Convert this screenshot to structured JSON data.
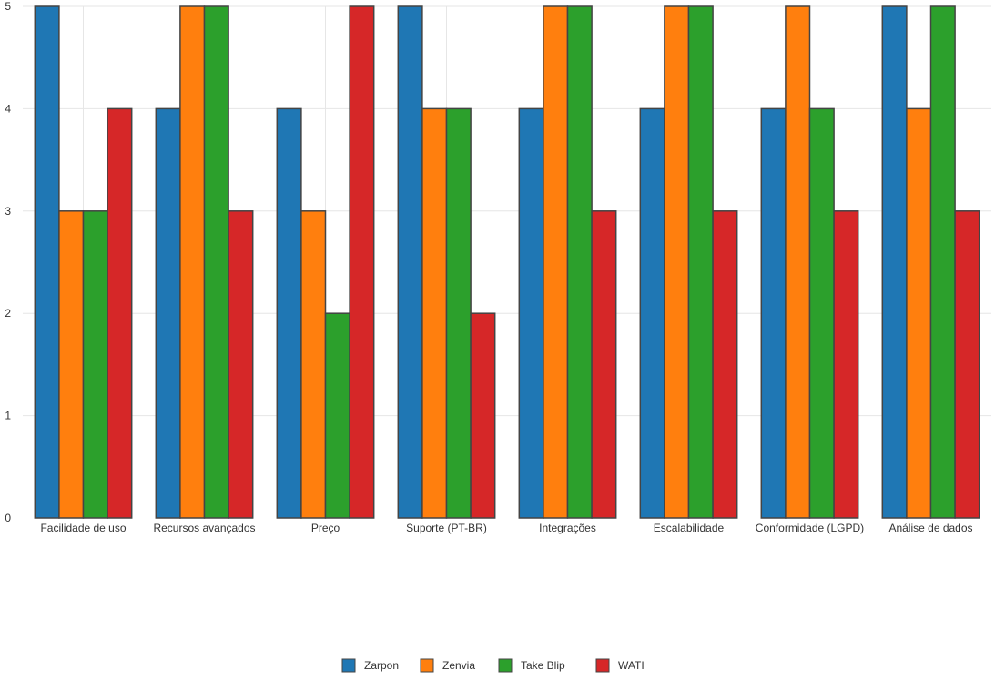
{
  "chart_data": {
    "type": "bar",
    "categories": [
      "Facilidade de uso",
      "Recursos avançados",
      "Preço",
      "Suporte (PT-BR)",
      "Integrações",
      "Escalabilidade",
      "Conformidade (LGPD)",
      "Análise de dados"
    ],
    "series": [
      {
        "name": "Zarpon",
        "color": "#1f77b4",
        "values": [
          5,
          4,
          4,
          5,
          4,
          4,
          4,
          5
        ]
      },
      {
        "name": "Zenvia",
        "color": "#ff7f0e",
        "values": [
          3,
          5,
          3,
          4,
          5,
          5,
          5,
          4
        ]
      },
      {
        "name": "Take Blip",
        "color": "#2ca02c",
        "values": [
          3,
          5,
          2,
          4,
          5,
          5,
          4,
          5
        ]
      },
      {
        "name": "WATI",
        "color": "#d62728",
        "values": [
          4,
          3,
          5,
          2,
          3,
          3,
          3,
          3
        ]
      }
    ],
    "title": "",
    "xlabel": "",
    "ylabel": "",
    "ylim": [
      0,
      5
    ],
    "yticks": [
      "0",
      "1",
      "2",
      "3",
      "4",
      "5"
    ],
    "grid": true,
    "legend_position": "bottom-center",
    "bar_outline_color": "#444444",
    "grid_color": "#e6e6e6"
  }
}
